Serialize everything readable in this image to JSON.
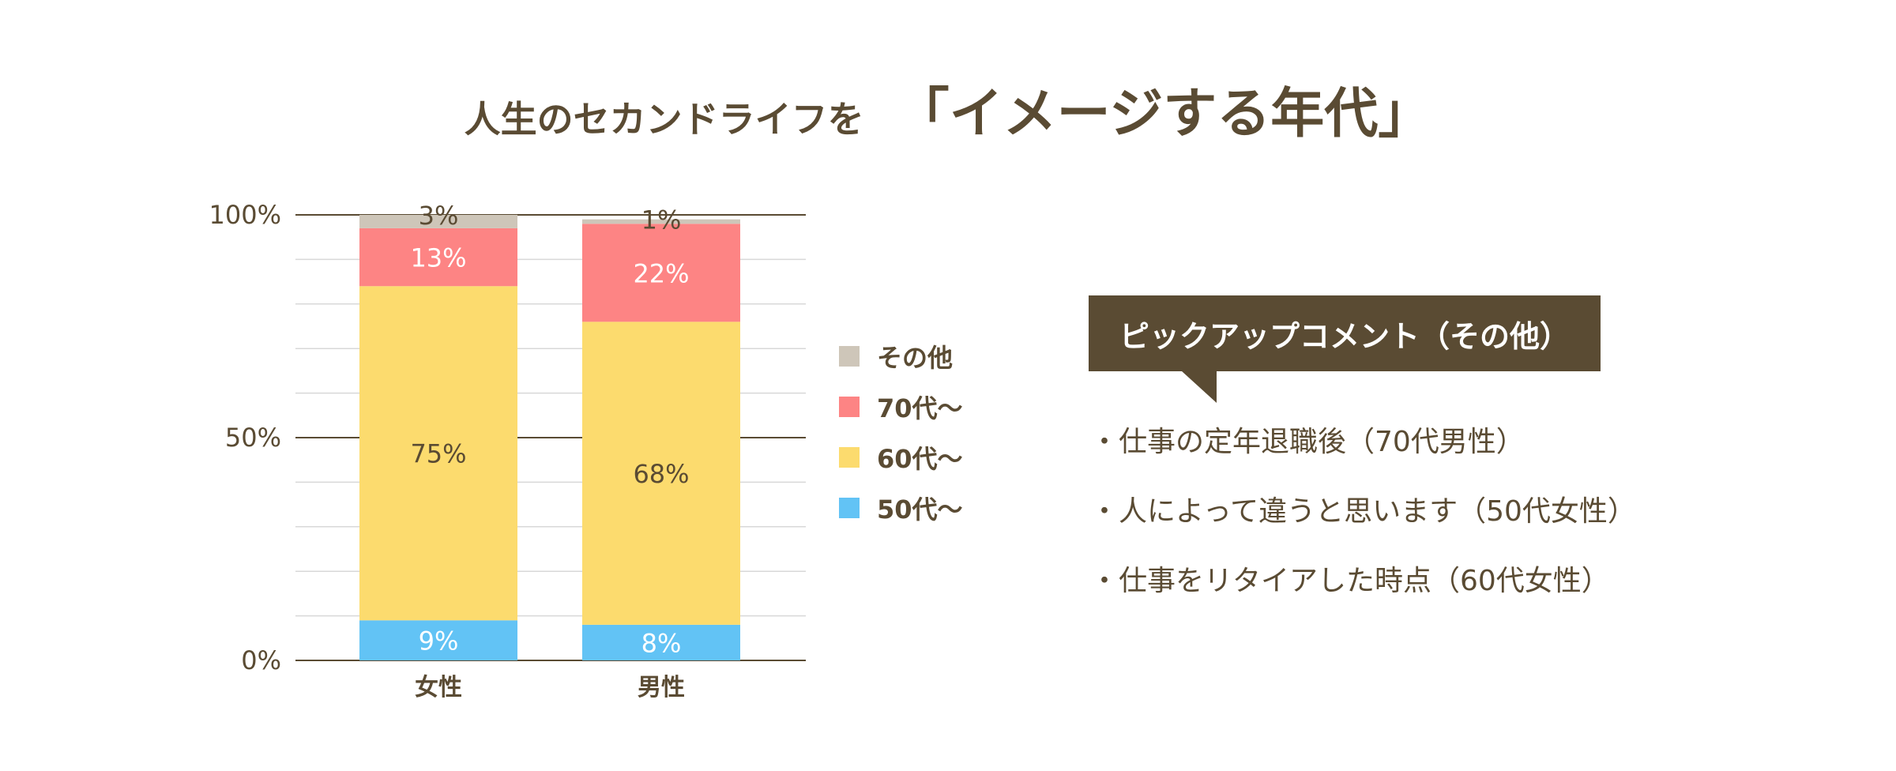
{
  "title": {
    "lead": "人生のセカンドライフを",
    "emphasis": "「イメージする年代」"
  },
  "chart_data": {
    "type": "bar",
    "stacked": true,
    "categories": [
      "女性",
      "男性"
    ],
    "series": [
      {
        "name": "50代〜",
        "values": [
          9,
          8
        ],
        "labels": [
          "9%",
          "8%"
        ],
        "color": "#62c3f5"
      },
      {
        "name": "60代〜",
        "values": [
          75,
          68
        ],
        "labels": [
          "75%",
          "68%"
        ],
        "color": "#fcdb6e"
      },
      {
        "name": "70代〜",
        "values": [
          13,
          22
        ],
        "labels": [
          "13%",
          "22%"
        ],
        "color": "#fd8484"
      },
      {
        "name": "その他",
        "values": [
          3,
          1
        ],
        "labels": [
          "3%",
          "1%"
        ],
        "color": "#cec6b9"
      }
    ],
    "ylim": [
      0,
      100
    ],
    "yticks": [
      "0%",
      "50%",
      "100%"
    ],
    "grid": true,
    "legend": {
      "placement": "right",
      "items": [
        "その他",
        "70代〜",
        "60代〜",
        "50代〜"
      ]
    }
  },
  "pickup": {
    "heading": "ピックアップコメント（その他）",
    "comments": [
      "・仕事の定年退職後（70代男性）",
      "・人によって違うと思います（50代女性）",
      "・仕事をリタイアした時点（60代女性）"
    ]
  },
  "colors": {
    "text": "#5a4b33",
    "grid_light": "#d8d8d8",
    "grid_major": "#5a4b33"
  }
}
